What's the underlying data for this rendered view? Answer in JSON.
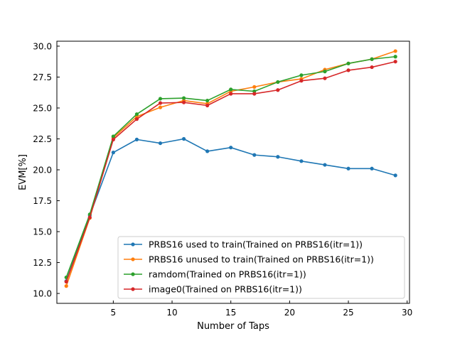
{
  "chart_data": {
    "type": "line",
    "title": "",
    "xlabel": "Number of Taps",
    "ylabel": "EVM[%]",
    "xlim": [
      0.2,
      30.2
    ],
    "ylim": [
      9.2,
      30.4
    ],
    "xticks": [
      5,
      10,
      15,
      20,
      25,
      30
    ],
    "yticks": [
      10.0,
      12.5,
      15.0,
      17.5,
      20.0,
      22.5,
      25.0,
      27.5,
      30.0
    ],
    "xtick_labels": [
      "5",
      "10",
      "15",
      "20",
      "25",
      "30"
    ],
    "ytick_labels": [
      "10.0",
      "12.5",
      "15.0",
      "17.5",
      "20.0",
      "22.5",
      "25.0",
      "27.5",
      "30.0"
    ],
    "grid": false,
    "legend_position": "lower-right",
    "x": [
      1,
      3,
      5,
      7,
      9,
      11,
      13,
      15,
      17,
      19,
      21,
      23,
      25,
      27,
      29
    ],
    "series": [
      {
        "name": "PRBS16 used to train(Trained on PRBS16(itr=1))",
        "color": "#1f77b4",
        "values": [
          11.0,
          16.3,
          21.4,
          22.45,
          22.15,
          22.5,
          21.5,
          21.8,
          21.2,
          21.05,
          20.7,
          20.4,
          20.1,
          20.1,
          19.55
        ]
      },
      {
        "name": "PRBS16 unused to train(Trained on PRBS16(itr=1))",
        "color": "#ff7f0e",
        "values": [
          10.6,
          16.1,
          22.6,
          24.3,
          25.05,
          25.6,
          25.35,
          26.35,
          26.7,
          27.1,
          27.35,
          28.1,
          28.6,
          28.95,
          29.6
        ]
      },
      {
        "name": "ramdom(Trained on PRBS16(itr=1))",
        "color": "#2ca02c",
        "values": [
          11.3,
          16.4,
          22.7,
          24.5,
          25.75,
          25.8,
          25.6,
          26.5,
          26.35,
          27.1,
          27.65,
          27.95,
          28.6,
          28.95,
          29.15
        ]
      },
      {
        "name": "image0(Trained on PRBS16(itr=1))",
        "color": "#d62728",
        "values": [
          10.95,
          16.15,
          22.45,
          24.1,
          25.4,
          25.45,
          25.2,
          26.15,
          26.15,
          26.45,
          27.2,
          27.4,
          28.05,
          28.3,
          28.75
        ]
      }
    ]
  }
}
